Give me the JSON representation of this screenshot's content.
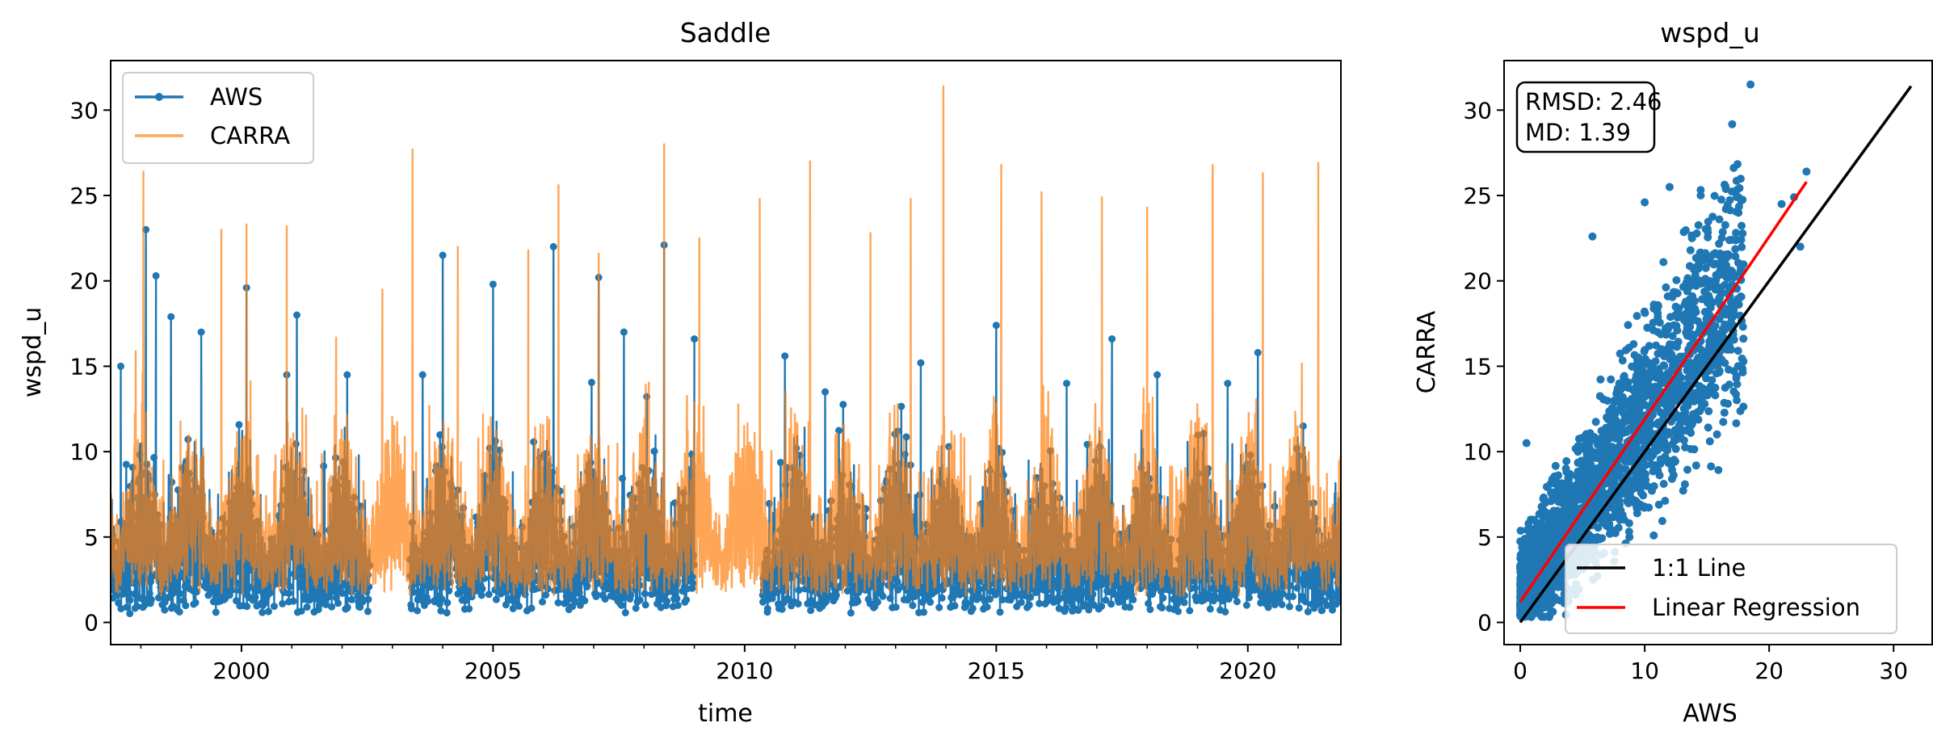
{
  "chart_data": [
    {
      "type": "line",
      "title": "Saddle",
      "xlabel": "time",
      "ylabel": "wspd_u",
      "xlim": [
        1997.4,
        2021.85
      ],
      "ylim": [
        -1.3,
        32.9
      ],
      "xticks": [
        2000,
        2005,
        2010,
        2015,
        2020
      ],
      "xtick_labels": [
        "2000",
        "2005",
        "2010",
        "2015",
        "2020"
      ],
      "yticks": [
        0,
        5,
        10,
        15,
        20,
        25,
        30
      ],
      "ytick_labels": [
        "0",
        "5",
        "10",
        "15",
        "20",
        "25",
        "30"
      ],
      "legend": {
        "placement": "upper-left"
      },
      "grid": false,
      "series": [
        {
          "name": "AWS",
          "color": "#1f77b4",
          "marker": "point",
          "gaps": [
            [
              2002.55,
              2003.35
            ],
            [
              2009.0,
              2010.35
            ]
          ],
          "typical_range": [
            0.5,
            14
          ],
          "peaks": [
            {
              "x": 1997.6,
              "y": 15.0
            },
            {
              "x": 1998.1,
              "y": 23.0
            },
            {
              "x": 1998.3,
              "y": 20.3
            },
            {
              "x": 1998.6,
              "y": 17.9
            },
            {
              "x": 1999.2,
              "y": 17.0
            },
            {
              "x": 2000.1,
              "y": 19.6
            },
            {
              "x": 2000.9,
              "y": 14.5
            },
            {
              "x": 2001.1,
              "y": 18.0
            },
            {
              "x": 2002.1,
              "y": 14.5
            },
            {
              "x": 2003.6,
              "y": 14.5
            },
            {
              "x": 2004.0,
              "y": 21.5
            },
            {
              "x": 2005.0,
              "y": 19.8
            },
            {
              "x": 2006.2,
              "y": 22.0
            },
            {
              "x": 2007.1,
              "y": 20.2
            },
            {
              "x": 2007.6,
              "y": 17.0
            },
            {
              "x": 2008.4,
              "y": 22.1
            },
            {
              "x": 2009.0,
              "y": 16.6
            },
            {
              "x": 2010.8,
              "y": 15.6
            },
            {
              "x": 2011.6,
              "y": 13.5
            },
            {
              "x": 2013.5,
              "y": 15.2
            },
            {
              "x": 2015.0,
              "y": 17.4
            },
            {
              "x": 2016.4,
              "y": 14.0
            },
            {
              "x": 2017.3,
              "y": 16.6
            },
            {
              "x": 2018.2,
              "y": 14.5
            },
            {
              "x": 2019.6,
              "y": 14.0
            },
            {
              "x": 2020.2,
              "y": 15.8
            },
            {
              "x": 2021.1,
              "y": 11.5
            }
          ]
        },
        {
          "name": "CARRA",
          "color": "#ff7f0e",
          "typical_range": [
            1.5,
            16
          ],
          "peaks": [
            {
              "x": 1998.05,
              "y": 26.4
            },
            {
              "x": 1999.6,
              "y": 23.0
            },
            {
              "x": 2000.1,
              "y": 23.3
            },
            {
              "x": 2000.9,
              "y": 23.2
            },
            {
              "x": 2002.8,
              "y": 19.5
            },
            {
              "x": 2003.4,
              "y": 27.7
            },
            {
              "x": 2004.3,
              "y": 22.0
            },
            {
              "x": 2005.7,
              "y": 21.8
            },
            {
              "x": 2006.3,
              "y": 25.6
            },
            {
              "x": 2007.1,
              "y": 21.6
            },
            {
              "x": 2008.4,
              "y": 28.0
            },
            {
              "x": 2009.1,
              "y": 22.5
            },
            {
              "x": 2010.3,
              "y": 24.8
            },
            {
              "x": 2011.3,
              "y": 27.0
            },
            {
              "x": 2012.5,
              "y": 22.8
            },
            {
              "x": 2013.3,
              "y": 24.8
            },
            {
              "x": 2013.95,
              "y": 31.4
            },
            {
              "x": 2015.1,
              "y": 26.8
            },
            {
              "x": 2015.9,
              "y": 25.2
            },
            {
              "x": 2017.1,
              "y": 24.9
            },
            {
              "x": 2018.0,
              "y": 24.3
            },
            {
              "x": 2019.3,
              "y": 26.8
            },
            {
              "x": 2020.3,
              "y": 26.3
            },
            {
              "x": 2021.4,
              "y": 26.9
            }
          ]
        }
      ]
    },
    {
      "type": "scatter",
      "title": "wspd_u",
      "xlabel": "AWS",
      "ylabel": "CARRA",
      "xlim": [
        -1.3,
        33.1
      ],
      "ylim": [
        -1.3,
        32.9
      ],
      "xticks": [
        0,
        10,
        20,
        30
      ],
      "xtick_labels": [
        "0",
        "10",
        "20",
        "30"
      ],
      "yticks": [
        0,
        5,
        10,
        15,
        20,
        25,
        30
      ],
      "ytick_labels": [
        "0",
        "5",
        "10",
        "15",
        "20",
        "25",
        "30"
      ],
      "annotation": {
        "line1": "RMSD: 2.46",
        "line2": "MD: 1.39"
      },
      "point_color": "#1f77b4",
      "point_cloud": {
        "x_range": [
          0,
          23
        ],
        "intercept": 1.4,
        "slope": 1.06,
        "spread": 2.3
      },
      "outliers": [
        {
          "x": 18.5,
          "y": 31.5
        },
        {
          "x": 22.0,
          "y": 24.9
        },
        {
          "x": 22.5,
          "y": 22.0
        },
        {
          "x": 23.0,
          "y": 26.4
        },
        {
          "x": 14.5,
          "y": 25.0
        },
        {
          "x": 12.0,
          "y": 25.5
        },
        {
          "x": 10.0,
          "y": 24.6
        },
        {
          "x": 16.0,
          "y": 23.6
        },
        {
          "x": 13.8,
          "y": 22.5
        },
        {
          "x": 5.8,
          "y": 22.6
        },
        {
          "x": 0.5,
          "y": 10.5
        },
        {
          "x": 21.0,
          "y": 24.5
        }
      ],
      "series": [
        {
          "name": "1:1 Line",
          "color": "#000000",
          "x": [
            0,
            31.4
          ],
          "y": [
            0,
            31.4
          ]
        },
        {
          "name": "Linear Regression",
          "color": "#ff0000",
          "x": [
            0,
            23
          ],
          "y": [
            1.2,
            25.8
          ]
        }
      ],
      "legend": {
        "placement": "lower-right"
      },
      "grid": false
    }
  ]
}
